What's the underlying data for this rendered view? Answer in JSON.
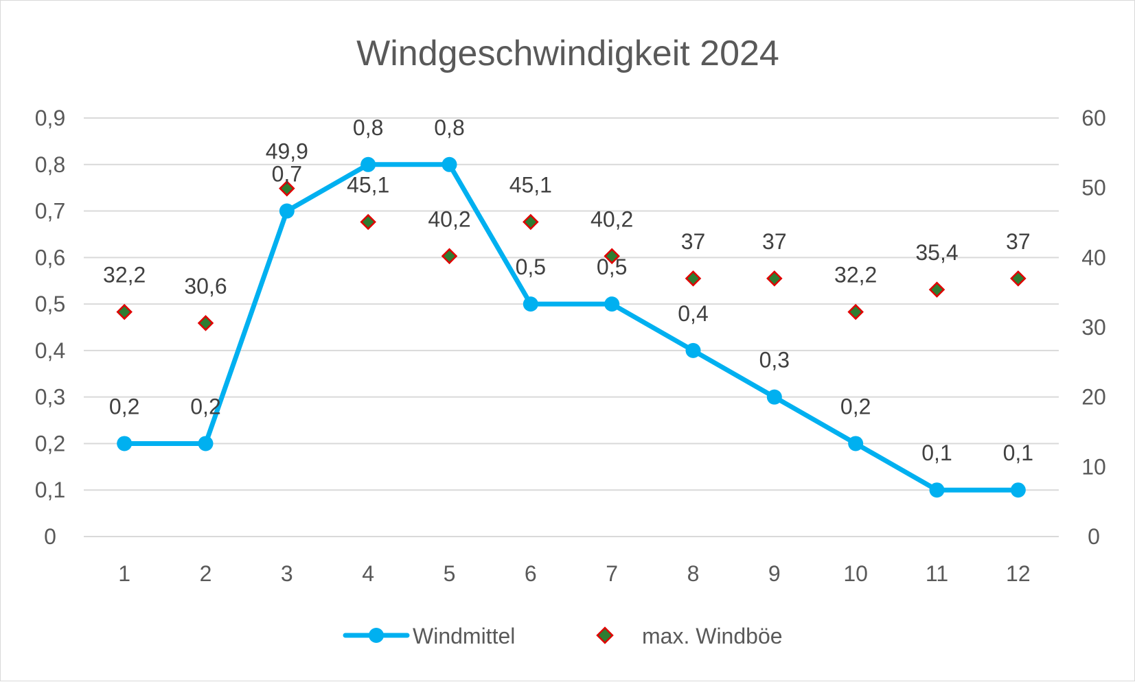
{
  "chart_data": {
    "type": "line",
    "title": "Windgeschwindigkeit 2024",
    "categories": [
      "1",
      "2",
      "3",
      "4",
      "5",
      "6",
      "7",
      "8",
      "9",
      "10",
      "11",
      "12"
    ],
    "series": [
      {
        "name": "Windmittel",
        "type": "line",
        "axis": "left",
        "color": "#00b0f0",
        "values": [
          0.2,
          0.2,
          0.7,
          0.8,
          0.8,
          0.5,
          0.5,
          0.4,
          0.3,
          0.2,
          0.1,
          0.1
        ],
        "labels": [
          "0,2",
          "0,2",
          "0,7",
          "0,8",
          "0,8",
          "0,5",
          "0,5",
          "0,4",
          "0,3",
          "0,2",
          "0,1",
          "0,1"
        ]
      },
      {
        "name": "max. Windböe",
        "type": "scatter",
        "axis": "right",
        "marker": "diamond",
        "fill_color": "#2e7d32",
        "border_color": "#e00000",
        "values": [
          32.2,
          30.6,
          49.9,
          45.1,
          40.2,
          45.1,
          40.2,
          37,
          37,
          32.2,
          35.4,
          37
        ],
        "labels": [
          "32,2",
          "30,6",
          "49,9",
          "45,1",
          "40,2",
          "45,1",
          "40,2",
          "37",
          "37",
          "32,2",
          "35,4",
          "37"
        ]
      }
    ],
    "y_left": {
      "ylim": [
        0,
        0.9
      ],
      "ticks": [
        "0",
        "0,1",
        "0,2",
        "0,3",
        "0,4",
        "0,5",
        "0,6",
        "0,7",
        "0,8",
        "0,9"
      ]
    },
    "y_right": {
      "ylim": [
        0,
        60
      ],
      "ticks": [
        "0",
        "10",
        "20",
        "30",
        "40",
        "50",
        "60"
      ]
    },
    "grid": true,
    "legend_position": "bottom",
    "gridline_color": "#d9d9d9"
  }
}
